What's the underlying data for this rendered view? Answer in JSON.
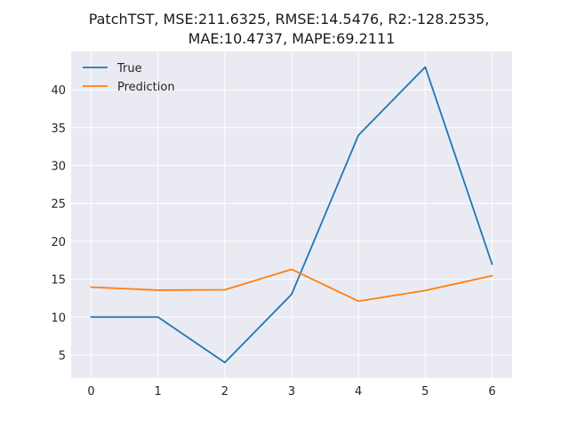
{
  "chart_data": {
    "type": "line",
    "title_lines": [
      "PatchTST, MSE:211.6325, RMSE:14.5476, R2:-128.2535,",
      "MAE:10.4737, MAPE:69.2111"
    ],
    "xlabel": "",
    "ylabel": "",
    "x": [
      0,
      1,
      2,
      3,
      4,
      5,
      6
    ],
    "x_ticks": [
      "0",
      "1",
      "2",
      "3",
      "4",
      "5",
      "6"
    ],
    "y_ticks": [
      "5",
      "10",
      "15",
      "20",
      "25",
      "30",
      "35",
      "40"
    ],
    "xlim": [
      -0.3,
      6.3
    ],
    "ylim": [
      1.95,
      45.05
    ],
    "grid": true,
    "legend_position": "upper-left",
    "background": "#eaeaf2",
    "series": [
      {
        "name": "True",
        "color": "#1f77b4",
        "values": [
          10,
          10,
          4,
          13,
          34,
          43,
          17
        ]
      },
      {
        "name": "Prediction",
        "color": "#ff7f0e",
        "values": [
          13.95,
          13.55,
          13.6,
          16.3,
          12.1,
          13.5,
          15.45
        ]
      }
    ]
  }
}
